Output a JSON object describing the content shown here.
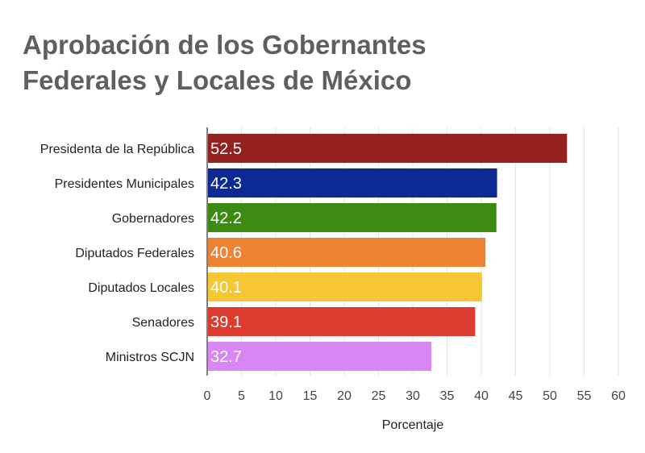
{
  "chart_data": {
    "type": "bar",
    "orientation": "horizontal",
    "title_lines": [
      "Aprobación de los Gobernantes",
      "Federales y Locales de México"
    ],
    "xlabel": "Porcentaje",
    "ylabel": "",
    "xlim": [
      0,
      60
    ],
    "xticks": [
      0,
      5,
      10,
      15,
      20,
      25,
      30,
      35,
      40,
      45,
      50,
      55,
      60
    ],
    "grid": true,
    "categories": [
      "Presidenta de la República",
      "Presidentes Municipales",
      "Gobernadores",
      "Diputados Federales",
      "Diputados Locales",
      "Senadores",
      "Ministros SCJN"
    ],
    "values": [
      52.5,
      42.3,
      42.2,
      40.6,
      40.1,
      39.1,
      32.7
    ],
    "value_labels": [
      "52.5",
      "42.3",
      "42.2",
      "40.6",
      "40.1",
      "39.1",
      "32.7"
    ],
    "colors": [
      "#922120",
      "#0d2a94",
      "#3d8a10",
      "#ef8334",
      "#f7c733",
      "#dd3a30",
      "#d886f5"
    ]
  }
}
